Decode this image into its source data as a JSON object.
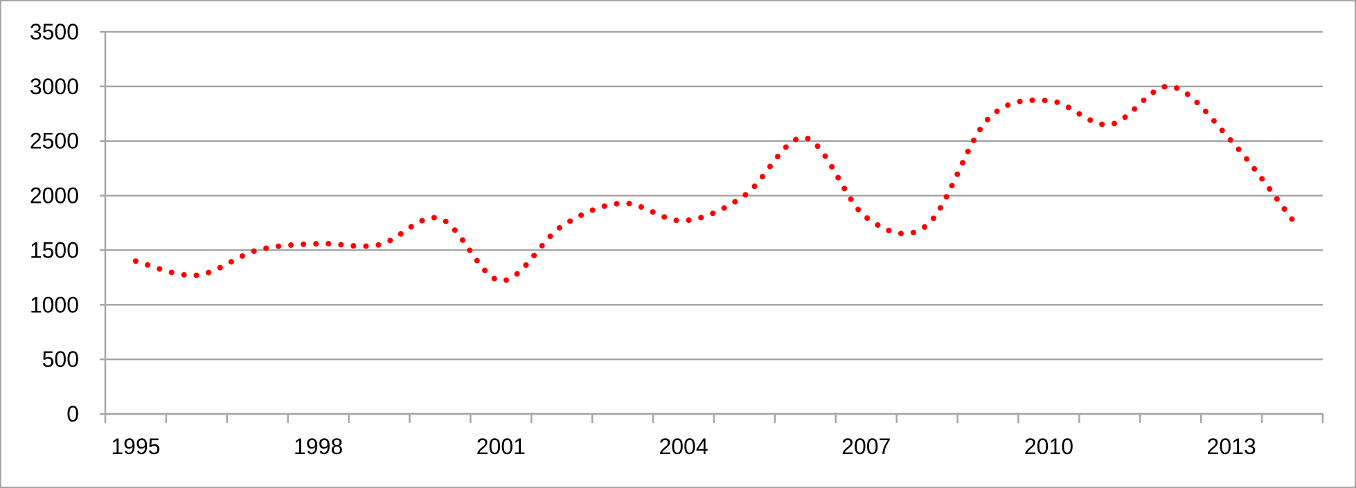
{
  "chart_data": {
    "type": "line",
    "title": "",
    "xlabel": "",
    "ylabel": "",
    "ylim": [
      0,
      3500
    ],
    "y_ticks": [
      0,
      500,
      1000,
      1500,
      2000,
      2500,
      3000,
      3500
    ],
    "x_tick_labels": [
      "1995",
      "1998",
      "2001",
      "2004",
      "2007",
      "2010",
      "2013"
    ],
    "grid": true,
    "legend": "none",
    "line_style": "dotted",
    "colors": {
      "series": "#ff0000",
      "grid": "#a6a6a6",
      "axis": "#a6a6a6"
    },
    "x": [
      "1995",
      "1996",
      "1997",
      "1998",
      "1999",
      "2000",
      "2001",
      "2002",
      "2003",
      "2004",
      "2005",
      "2006",
      "2007",
      "2008",
      "2009",
      "2010",
      "2011",
      "2012",
      "2013",
      "2014"
    ],
    "series": [
      {
        "values": [
          1400,
          1270,
          1500,
          1560,
          1550,
          1790,
          1220,
          1720,
          1930,
          1770,
          2000,
          2530,
          1800,
          1730,
          2700,
          2870,
          2650,
          3000,
          2500,
          1780
        ]
      }
    ]
  }
}
